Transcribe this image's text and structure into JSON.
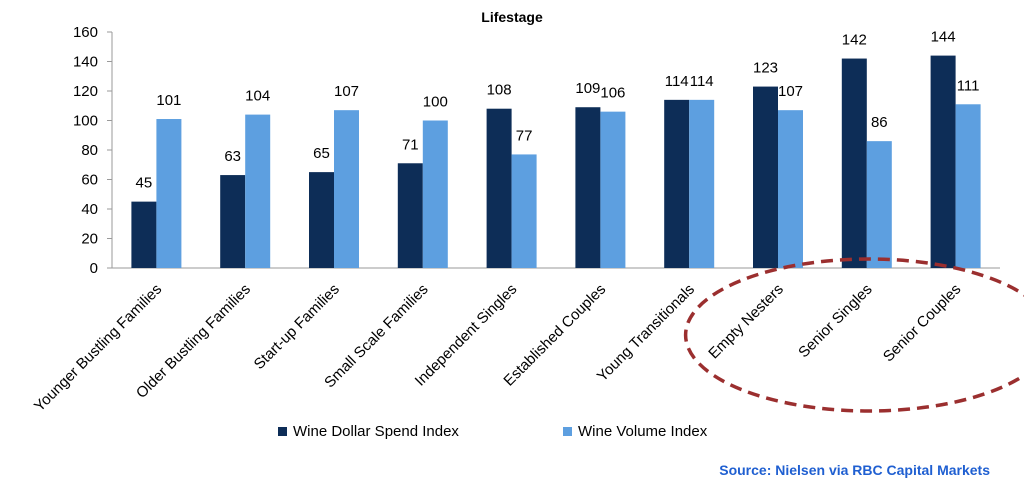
{
  "chart_data": {
    "type": "bar",
    "title": "Lifestage",
    "categories": [
      "Younger Bustling Families",
      "Older Bustling Families",
      "Start-up Families",
      "Small Scale Families",
      "Independent Singles",
      "Established Couples",
      "Young Transitionals",
      "Empty Nesters",
      "Senior Singles",
      "Senior Couples"
    ],
    "series": [
      {
        "name": "Wine Dollar Spend Index",
        "color": "#0d2d57",
        "values": [
          45,
          63,
          65,
          71,
          108,
          109,
          114,
          123,
          142,
          144
        ]
      },
      {
        "name": "Wine Volume Index",
        "color": "#5d9fe0",
        "values": [
          101,
          104,
          107,
          100,
          77,
          106,
          114,
          107,
          86,
          111
        ]
      }
    ],
    "ylim": [
      0,
      160
    ],
    "yticks": [
      0,
      20,
      40,
      60,
      80,
      100,
      120,
      140,
      160
    ],
    "grid": false,
    "legend_position": "bottom",
    "highlight": {
      "style": "dashed-ellipse",
      "color": "#9b2f2f",
      "categories": [
        "Empty Nesters",
        "Senior Singles",
        "Senior Couples"
      ]
    }
  },
  "source": "Source: Nielsen via RBC Capital Markets"
}
